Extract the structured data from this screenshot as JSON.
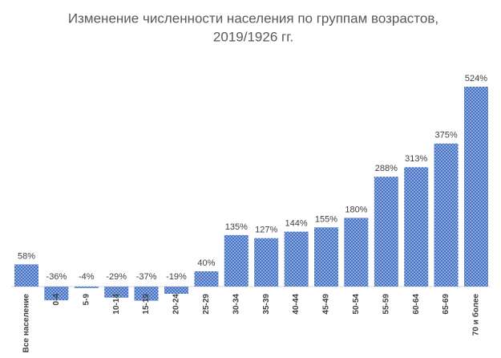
{
  "chart_data": {
    "type": "bar",
    "title": [
      "Изменение численности населения по группам возрастов,",
      "2019/1926 гг."
    ],
    "categories": [
      "Все население",
      "0-4",
      "5-9",
      "10-14",
      "15-19",
      "20-24",
      "25-29",
      "30-34",
      "35-39",
      "40-44",
      "45-49",
      "50-54",
      "55-59",
      "60-64",
      "65-69",
      "70 и более"
    ],
    "values": [
      58,
      -36,
      -4,
      -29,
      -37,
      -19,
      40,
      135,
      127,
      144,
      155,
      180,
      288,
      313,
      375,
      524
    ],
    "value_labels": [
      "58%",
      "-36%",
      "-4%",
      "-29%",
      "-37%",
      "-19%",
      "40%",
      "135%",
      "127%",
      "144%",
      "155%",
      "180%",
      "288%",
      "313%",
      "375%",
      "524%"
    ],
    "color": "#4472c4"
  }
}
